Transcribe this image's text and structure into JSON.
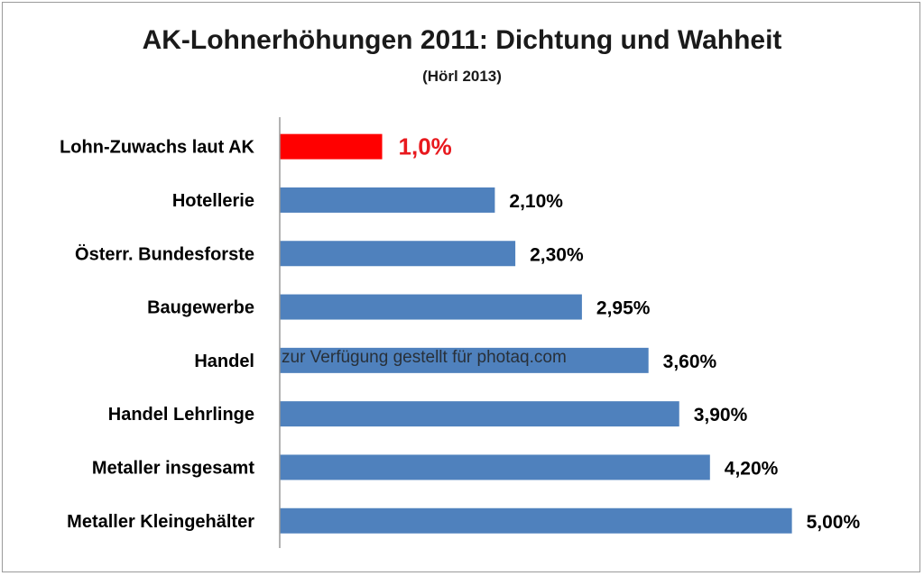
{
  "chart_data": {
    "type": "bar",
    "orientation": "horizontal",
    "title": "AK-Lohnerhöhungen 2011: Dichtung und Wahheit",
    "subtitle": "(Hörl 2013)",
    "categories": [
      "Lohn-Zuwachs laut AK",
      "Hotellerie",
      "Österr. Bundesforste",
      "Baugewerbe",
      "Handel",
      "Handel Lehrlinge",
      "Metaller insgesamt",
      "Metaller Kleingehälter"
    ],
    "values": [
      1.0,
      2.1,
      2.3,
      2.95,
      3.6,
      3.9,
      4.2,
      5.0
    ],
    "value_labels": [
      "1,0%",
      "2,10%",
      "2,30%",
      "2,95%",
      "3,60%",
      "3,90%",
      "4,20%",
      "5,00%"
    ],
    "colors": [
      "#ff0000",
      "#4f81bd",
      "#4f81bd",
      "#4f81bd",
      "#4f81bd",
      "#4f81bd",
      "#4f81bd",
      "#4f81bd"
    ],
    "highlight_label_color": "#e8191e",
    "xlim": [
      0,
      5.25
    ],
    "xlabel": "",
    "ylabel": "",
    "grid": false,
    "legend": "none"
  },
  "watermark": "zur Verfügung gestellt für photaq.com"
}
